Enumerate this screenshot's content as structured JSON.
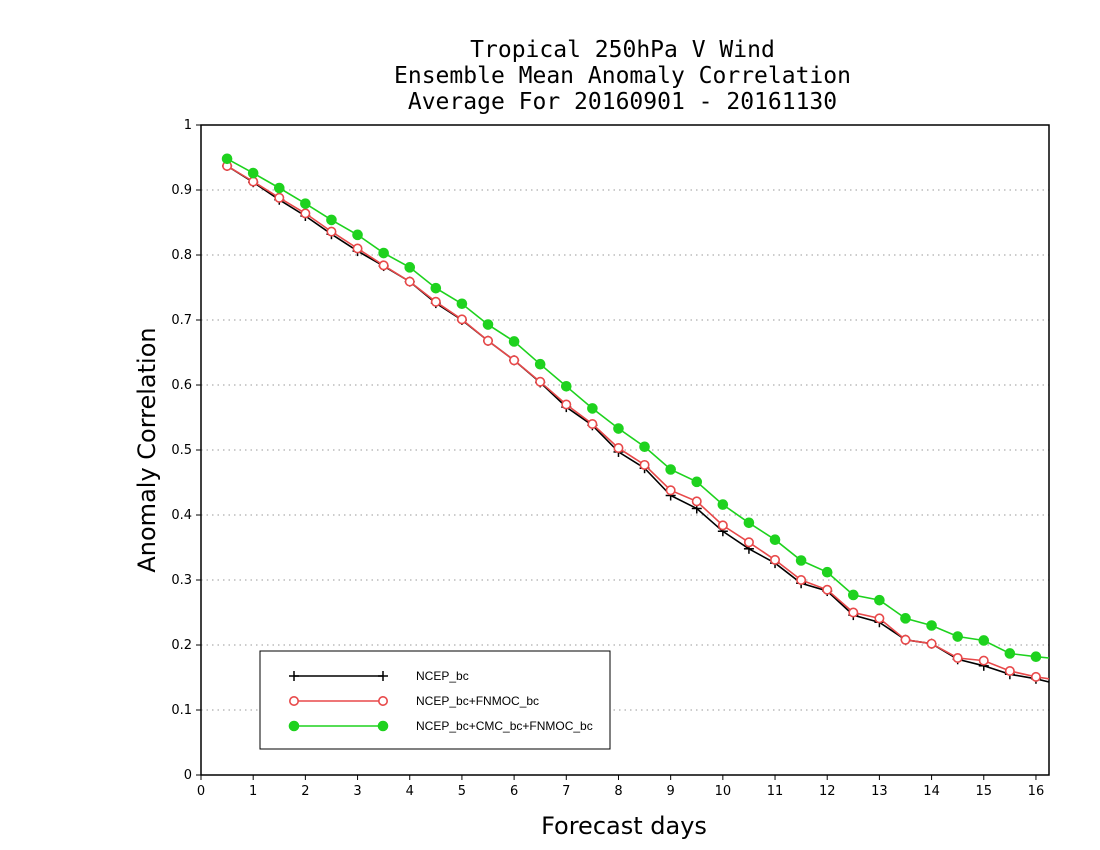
{
  "chart_data": {
    "type": "line",
    "title_lines": [
      "Tropical 250hPa V Wind",
      "Ensemble Mean Anomaly Correlation",
      "Average For 20160901 - 20161130"
    ],
    "xlabel": "Forecast days",
    "ylabel": "Anomaly Correlation",
    "xlim": [
      0,
      16.25
    ],
    "ylim": [
      0,
      1
    ],
    "xticks": [
      0,
      1,
      2,
      3,
      4,
      5,
      6,
      7,
      8,
      9,
      10,
      11,
      12,
      13,
      14,
      15,
      16
    ],
    "yticks": [
      0,
      0.1,
      0.2,
      0.3,
      0.4,
      0.5,
      0.6,
      0.7,
      0.8,
      0.9,
      1
    ],
    "ytick_labels": [
      "0",
      "0.1",
      "0.2",
      "0.3",
      "0.4",
      "0.5",
      "0.6",
      "0.7",
      "0.8",
      "0.9",
      "1"
    ],
    "grid": "horizontal dotted",
    "legend_position": "bottom-left",
    "x": [
      0.5,
      1,
      1.5,
      2,
      2.5,
      3,
      3.5,
      4,
      4.5,
      5,
      5.5,
      6,
      6.5,
      7,
      7.5,
      8,
      8.5,
      9,
      9.5,
      10,
      10.5,
      11,
      11.5,
      12,
      12.5,
      13,
      13.5,
      14,
      14.5,
      15,
      15.5,
      16,
      16.25
    ],
    "series": [
      {
        "name": "NCEP_bc",
        "color": "#000000",
        "marker": "plus",
        "values": [
          0.937,
          0.912,
          0.885,
          0.86,
          0.832,
          0.806,
          0.783,
          0.759,
          0.726,
          0.7,
          0.668,
          0.638,
          0.604,
          0.566,
          0.538,
          0.497,
          0.472,
          0.43,
          0.41,
          0.375,
          0.348,
          0.326,
          0.295,
          0.283,
          0.246,
          0.235,
          0.208,
          0.202,
          0.178,
          0.168,
          0.155,
          0.148,
          0.143
        ]
      },
      {
        "name": "NCEP_bc+FNMOC_bc",
        "color": "#e8494a",
        "marker": "open-circle",
        "values": [
          0.937,
          0.913,
          0.888,
          0.864,
          0.836,
          0.81,
          0.784,
          0.759,
          0.728,
          0.701,
          0.668,
          0.638,
          0.605,
          0.57,
          0.54,
          0.503,
          0.477,
          0.438,
          0.421,
          0.384,
          0.358,
          0.331,
          0.3,
          0.285,
          0.25,
          0.241,
          0.208,
          0.202,
          0.18,
          0.176,
          0.16,
          0.151,
          0.148
        ]
      },
      {
        "name": "NCEP_bc+CMC_bc+FNMOC_bc",
        "color": "#1ed21e",
        "marker": "filled-circle",
        "values": [
          0.948,
          0.926,
          0.903,
          0.879,
          0.854,
          0.831,
          0.803,
          0.781,
          0.749,
          0.725,
          0.693,
          0.667,
          0.632,
          0.598,
          0.564,
          0.533,
          0.505,
          0.47,
          0.451,
          0.416,
          0.388,
          0.362,
          0.33,
          0.312,
          0.277,
          0.269,
          0.241,
          0.23,
          0.213,
          0.207,
          0.187,
          0.182,
          0.18
        ]
      }
    ]
  }
}
